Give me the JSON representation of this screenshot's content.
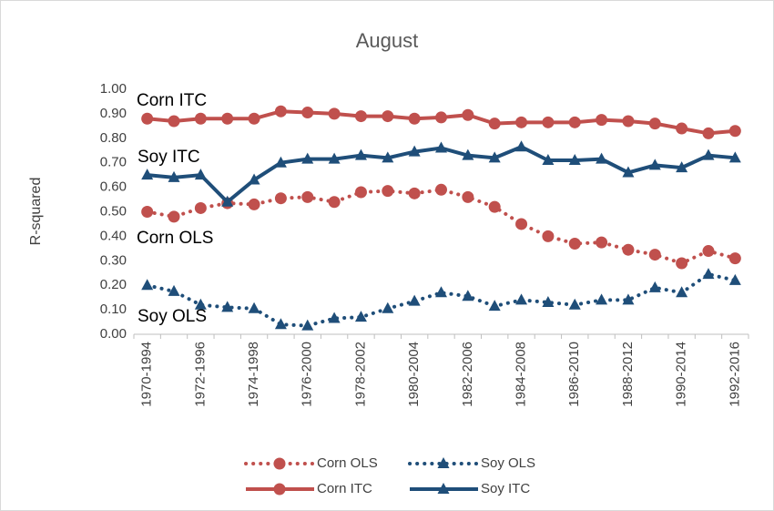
{
  "chart_data": {
    "type": "line",
    "title": "August",
    "y_label": "R-squared",
    "categories": [
      "1970-1994",
      null,
      "1972-1996",
      null,
      "1974-1998",
      null,
      "1976-2000",
      null,
      "1978-2002",
      null,
      "1980-2004",
      null,
      "1982-2006",
      null,
      "1984-2008",
      null,
      "1986-2010",
      null,
      "1988-2012",
      null,
      "1990-2014",
      null,
      "1992-2016"
    ],
    "ylim": [
      0,
      1
    ],
    "yticks": [
      {
        "value": 0,
        "label": "0.00"
      },
      {
        "value": 0.1,
        "label": "0.10"
      },
      {
        "value": 0.2,
        "label": "0.20"
      },
      {
        "value": 0.3,
        "label": "0.30"
      },
      {
        "value": 0.4,
        "label": "0.40"
      },
      {
        "value": 0.5,
        "label": "0.50"
      },
      {
        "value": 0.6,
        "label": "0.60"
      },
      {
        "value": 0.7,
        "label": "0.70"
      },
      {
        "value": 0.8,
        "label": "0.80"
      },
      {
        "value": 0.9,
        "label": "0.90"
      },
      {
        "value": 1,
        "label": "1.00"
      }
    ],
    "grid": false,
    "series": [
      {
        "name": "Corn OLS",
        "color": "#c0504d",
        "line": "dotted",
        "marker": "circle",
        "values": [
          0.5,
          0.48,
          0.515,
          0.535,
          0.53,
          0.555,
          0.56,
          0.54,
          0.58,
          0.585,
          0.575,
          0.59,
          0.56,
          0.52,
          0.45,
          0.4,
          0.37,
          0.375,
          0.345,
          0.325,
          0.29,
          0.34,
          0.31
        ]
      },
      {
        "name": "Soy OLS",
        "color": "#1f4e79",
        "line": "dotted",
        "marker": "triangle",
        "values": [
          0.2,
          0.175,
          0.12,
          0.11,
          0.105,
          0.04,
          0.035,
          0.065,
          0.07,
          0.105,
          0.135,
          0.17,
          0.155,
          0.115,
          0.14,
          0.13,
          0.12,
          0.14,
          0.14,
          0.19,
          0.17,
          0.245,
          0.22
        ]
      },
      {
        "name": "Corn ITC",
        "color": "#c0504d",
        "line": "solid",
        "marker": "circle",
        "values": [
          0.88,
          0.87,
          0.88,
          0.88,
          0.88,
          0.91,
          0.905,
          0.9,
          0.89,
          0.89,
          0.88,
          0.885,
          0.895,
          0.86,
          0.865,
          0.865,
          0.865,
          0.875,
          0.87,
          0.86,
          0.84,
          0.82,
          0.83
        ]
      },
      {
        "name": "Soy ITC",
        "color": "#1f4e79",
        "line": "solid",
        "marker": "triangle",
        "values": [
          0.65,
          0.64,
          0.65,
          0.54,
          0.63,
          0.7,
          0.715,
          0.715,
          0.73,
          0.72,
          0.745,
          0.76,
          0.73,
          0.72,
          0.765,
          0.71,
          0.71,
          0.715,
          0.66,
          0.69,
          0.68,
          0.73,
          0.72
        ]
      }
    ],
    "annotations": [
      "Corn ITC",
      "Soy ITC",
      "Corn OLS",
      "Soy OLS"
    ]
  }
}
